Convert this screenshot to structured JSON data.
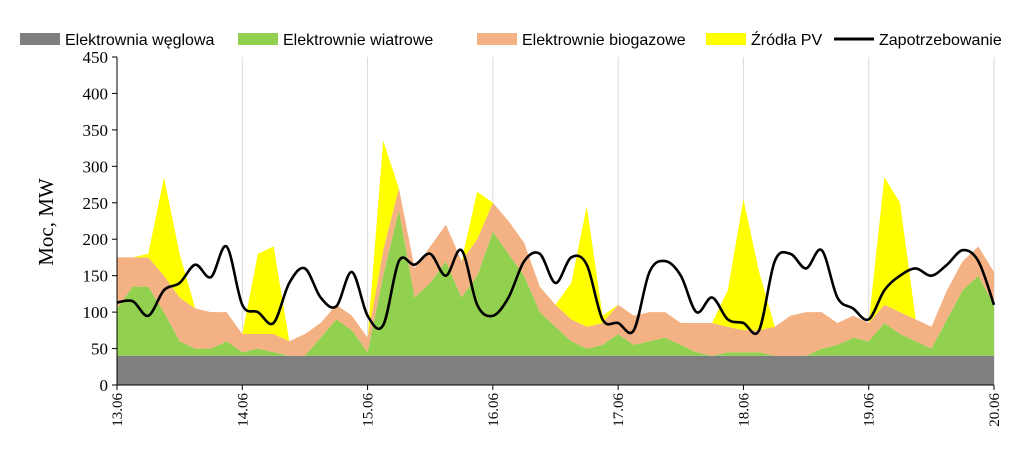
{
  "chart_data": {
    "type": "area",
    "title": "",
    "xlabel": "",
    "ylabel": "Moc, MW",
    "ylim": [
      0,
      450
    ],
    "yticks": [
      0,
      50,
      100,
      150,
      200,
      250,
      300,
      350,
      400,
      450
    ],
    "x_dates": [
      "13.06",
      "14.06",
      "15.06",
      "16.06",
      "17.06",
      "18.06",
      "19.06",
      "20.06"
    ],
    "x_hours": [
      0,
      3,
      6,
      9,
      12,
      15,
      18,
      21,
      24,
      27,
      30,
      33,
      36,
      39,
      42,
      45,
      48,
      51,
      54,
      57,
      60,
      63,
      66,
      69,
      72,
      75,
      78,
      81,
      84,
      87,
      90,
      93,
      96,
      99,
      102,
      105,
      108,
      111,
      114,
      117,
      120,
      123,
      126,
      129,
      132,
      135,
      138,
      141,
      144,
      147,
      150,
      153,
      156,
      159,
      162,
      165,
      168
    ],
    "grid": "vertical",
    "legend_position": "top",
    "stacked": true,
    "series": [
      {
        "name": "Elektrownia węglowa",
        "color": "#7f7f7f",
        "kind": "area",
        "values": [
          40,
          40,
          40,
          40,
          40,
          40,
          40,
          40,
          40,
          40,
          40,
          40,
          40,
          40,
          40,
          40,
          40,
          40,
          40,
          40,
          40,
          40,
          40,
          40,
          40,
          40,
          40,
          40,
          40,
          40,
          40,
          40,
          40,
          40,
          40,
          40,
          40,
          40,
          40,
          40,
          40,
          40,
          40,
          40,
          40,
          40,
          40,
          40,
          40,
          40,
          40,
          40,
          40,
          40,
          40,
          40,
          40
        ]
      },
      {
        "name": "Elektrownie wiatrowe",
        "color": "#92d050",
        "kind": "area",
        "values": [
          65,
          95,
          95,
          60,
          20,
          10,
          10,
          20,
          5,
          10,
          5,
          0,
          0,
          25,
          50,
          35,
          5,
          110,
          200,
          80,
          100,
          130,
          80,
          110,
          170,
          140,
          110,
          60,
          40,
          20,
          10,
          15,
          30,
          15,
          20,
          25,
          15,
          5,
          0,
          5,
          5,
          5,
          0,
          0,
          0,
          10,
          15,
          25,
          20,
          45,
          30,
          20,
          10,
          50,
          90,
          110,
          70
        ]
      },
      {
        "name": "Elektrownie biogazowe",
        "color": "#f4b183",
        "kind": "area",
        "values": [
          70,
          40,
          40,
          50,
          60,
          55,
          50,
          40,
          25,
          20,
          25,
          20,
          30,
          20,
          20,
          20,
          20,
          35,
          30,
          40,
          50,
          50,
          50,
          50,
          40,
          45,
          45,
          35,
          30,
          30,
          30,
          30,
          40,
          40,
          40,
          35,
          30,
          40,
          45,
          35,
          30,
          30,
          40,
          55,
          60,
          50,
          30,
          30,
          25,
          25,
          30,
          30,
          30,
          40,
          40,
          40,
          45
        ]
      },
      {
        "name": "Źródła PV",
        "color": "#ffff00",
        "kind": "area",
        "values": [
          0,
          0,
          5,
          135,
          60,
          0,
          0,
          0,
          0,
          110,
          120,
          0,
          0,
          0,
          0,
          0,
          0,
          150,
          0,
          0,
          0,
          0,
          0,
          65,
          0,
          0,
          0,
          0,
          0,
          50,
          165,
          10,
          0,
          0,
          0,
          0,
          0,
          0,
          0,
          50,
          180,
          80,
          0,
          0,
          0,
          0,
          0,
          0,
          0,
          175,
          150,
          0,
          0,
          0,
          0,
          0,
          0
        ]
      },
      {
        "name": "Zapotrzebowanie",
        "color": "#000000",
        "kind": "line",
        "values": [
          113,
          115,
          95,
          130,
          140,
          165,
          148,
          190,
          110,
          100,
          85,
          140,
          160,
          120,
          108,
          155,
          95,
          82,
          170,
          165,
          180,
          150,
          185,
          110,
          95,
          120,
          170,
          180,
          140,
          175,
          165,
          90,
          85,
          75,
          155,
          170,
          150,
          100,
          120,
          90,
          85,
          75,
          170,
          180,
          160,
          185,
          120,
          105,
          90,
          130,
          150,
          160,
          150,
          165,
          185,
          170,
          110
        ]
      }
    ]
  }
}
